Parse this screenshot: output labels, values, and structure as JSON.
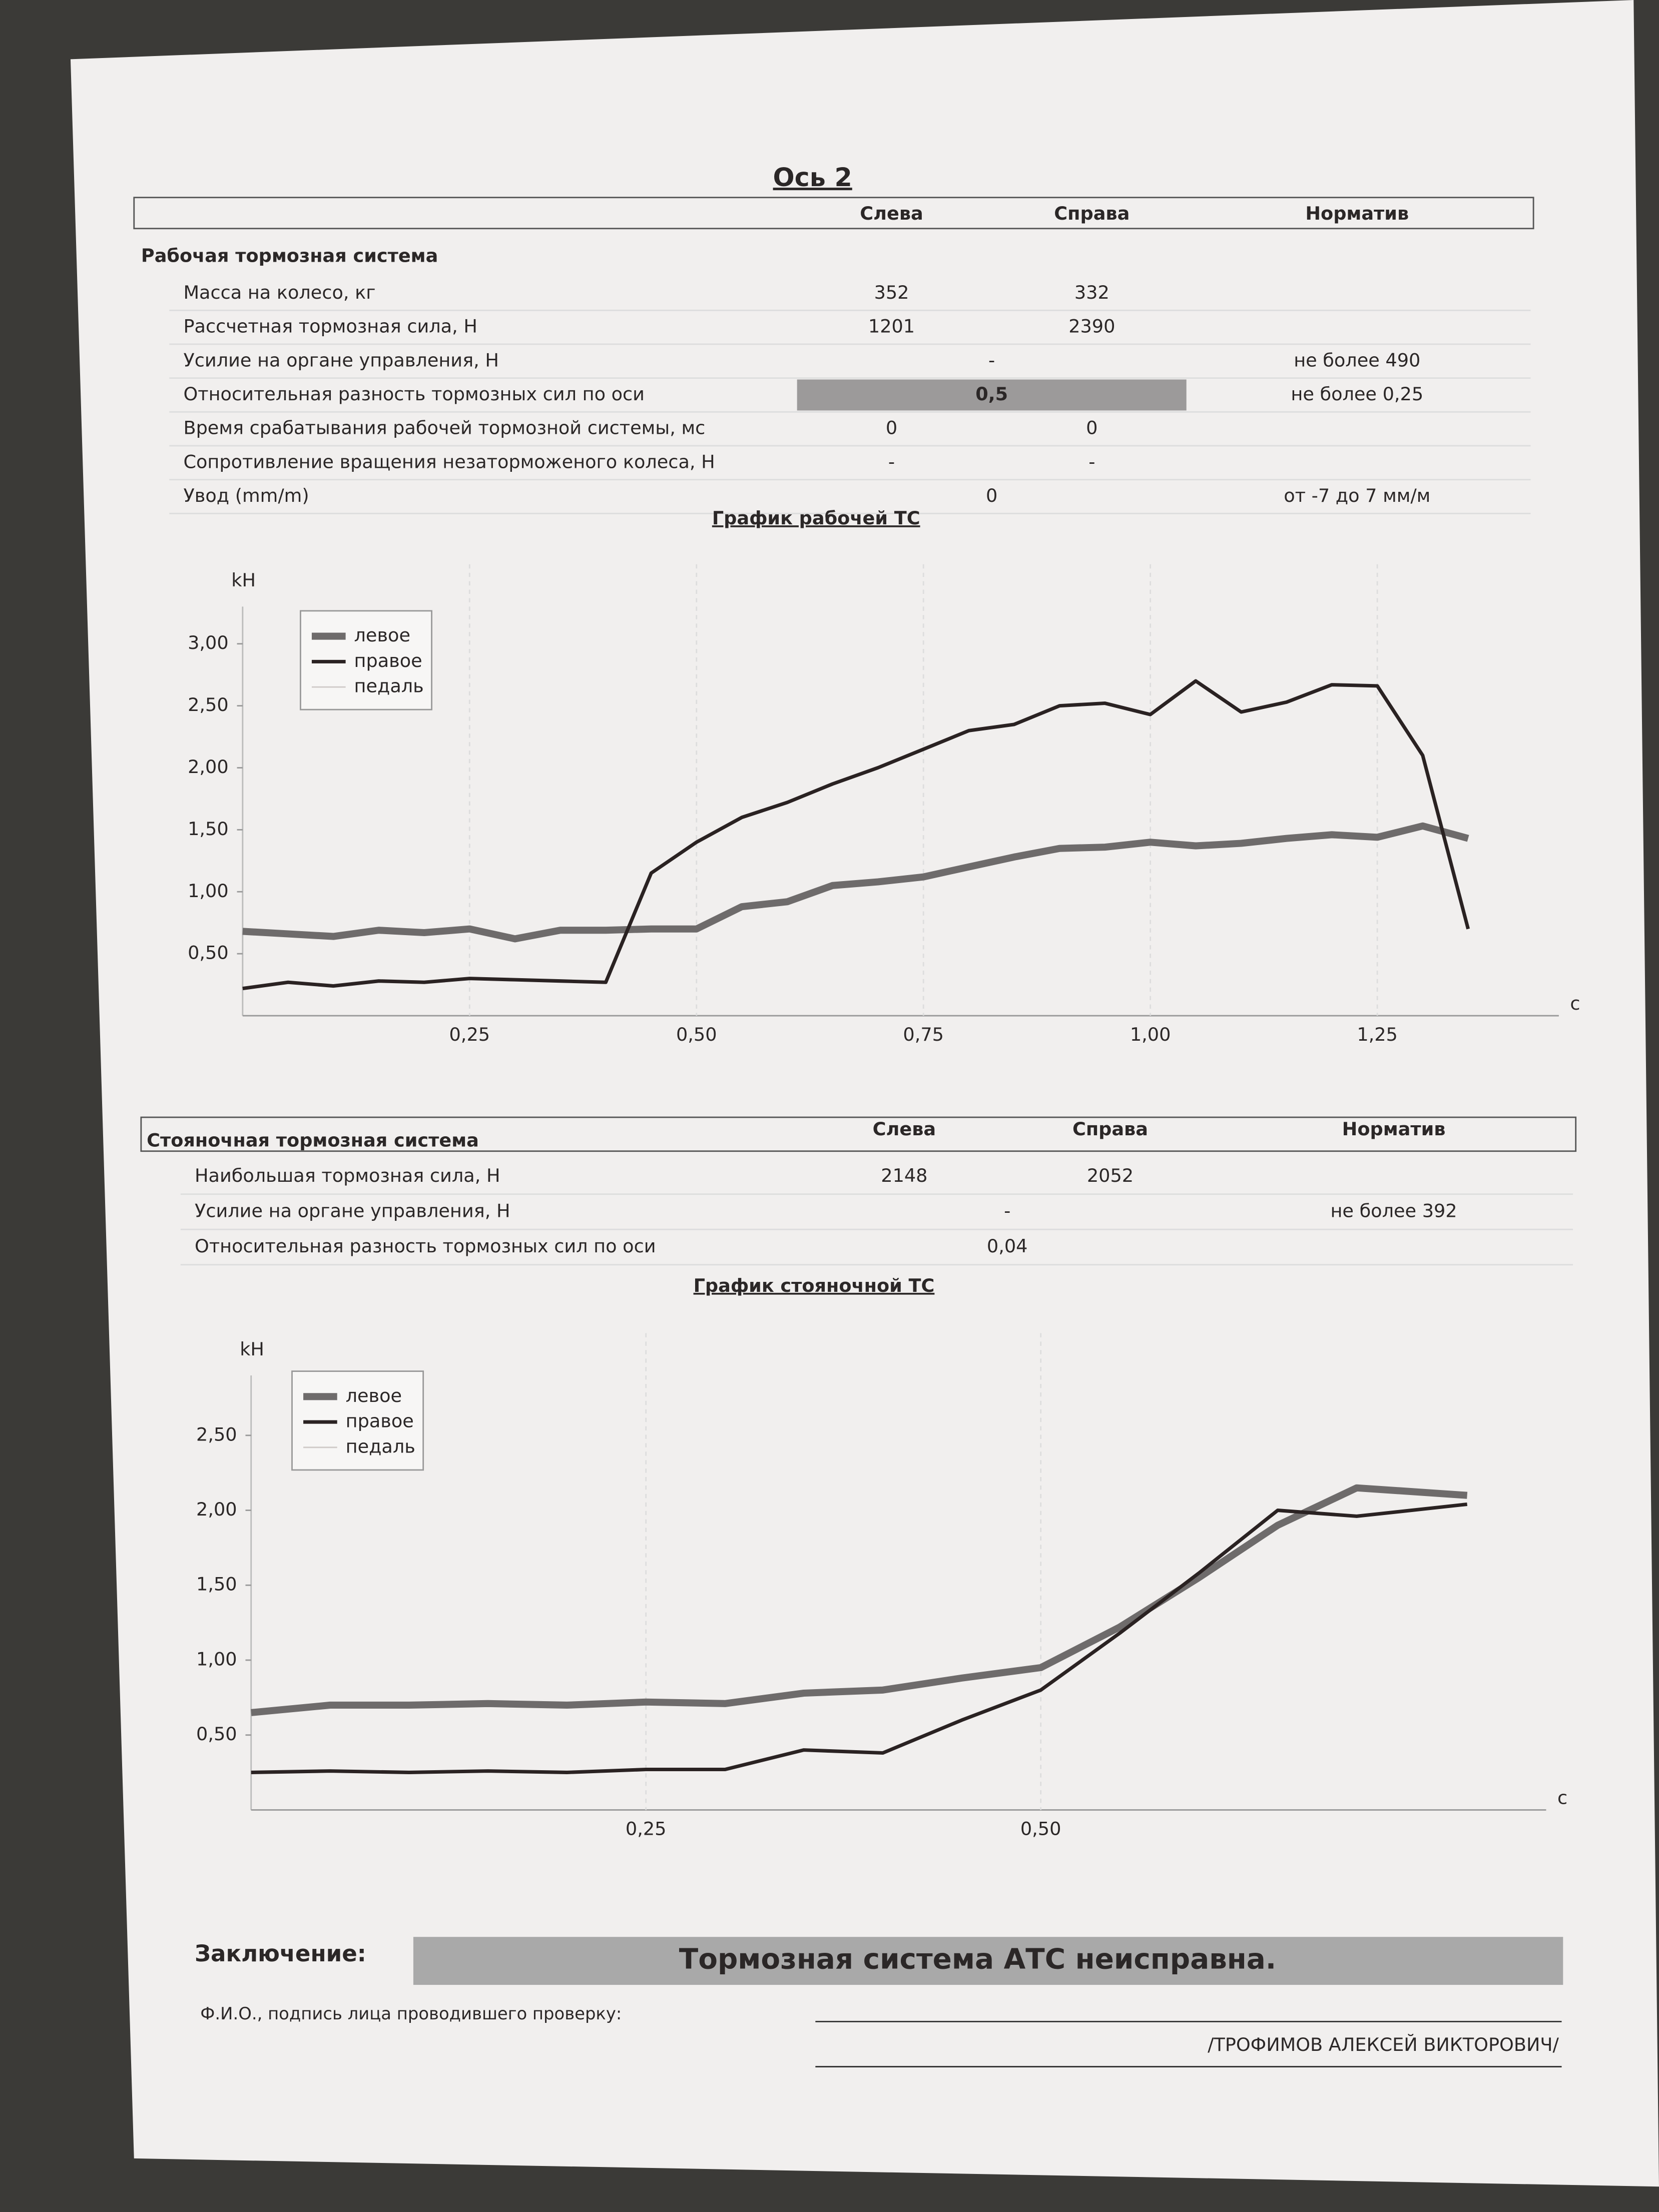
{
  "header": {
    "title": "Ось 2"
  },
  "service_table": {
    "section": "Рабочая тормозная система",
    "columns": [
      "Слева",
      "Справа",
      "Норматив"
    ],
    "rows": [
      {
        "label": "Масса на колесо, кг",
        "left": "352",
        "right": "332"
      },
      {
        "label": "Рассчетная тормозная сила, Н",
        "left": "1201",
        "right": "2390"
      },
      {
        "label": "Усилие на органе управления, Н",
        "merged": "-",
        "norm": "не более 490"
      },
      {
        "label": "Относительная разность тормозных сил по оси",
        "merged": "0,5",
        "norm": "не более 0,25",
        "highlighted": true
      },
      {
        "label": "Время срабатывания рабочей тормозной системы, мс",
        "left": "0",
        "right": "0"
      },
      {
        "label": "Сопротивление вращения незаторможеного колеса, Н",
        "left": "-",
        "right": "-"
      },
      {
        "label": "Увод (mm/m)",
        "merged": "0",
        "norm": "от -7 до 7 мм/м"
      }
    ]
  },
  "parking_table": {
    "section": "Стояночная тормозная система",
    "columns": [
      "Слева",
      "Справа",
      "Норматив"
    ],
    "rows": [
      {
        "label": "Наибольшая тормозная сила, Н",
        "left": "2148",
        "right": "2052"
      },
      {
        "label": "Усилие на органе управления, Н",
        "merged": "-",
        "norm": "не более 392"
      },
      {
        "label": "Относительная разность тормозных сил по оси",
        "merged": "0,04"
      }
    ]
  },
  "chart_data": [
    {
      "type": "line",
      "title": "График рабочей ТС",
      "y_label": "kH",
      "x_label": "с",
      "x": [
        0,
        0.05,
        0.1,
        0.15,
        0.2,
        0.25,
        0.3,
        0.35,
        0.4,
        0.45,
        0.5,
        0.55,
        0.6,
        0.65,
        0.7,
        0.75,
        0.8,
        0.85,
        0.9,
        0.95,
        1.0,
        1.05,
        1.1,
        1.15,
        1.2,
        1.25,
        1.3,
        1.35
      ],
      "series": [
        {
          "name": "левое",
          "color": "#6e6b6b",
          "width": 5,
          "values": [
            0.68,
            0.66,
            0.64,
            0.69,
            0.67,
            0.7,
            0.62,
            0.69,
            0.69,
            0.7,
            0.7,
            0.88,
            0.92,
            1.05,
            1.08,
            1.12,
            1.2,
            1.28,
            1.35,
            1.36,
            1.4,
            1.37,
            1.39,
            1.43,
            1.46,
            1.44,
            1.53,
            1.43
          ]
        },
        {
          "name": "правое",
          "color": "#2a2222",
          "width": 2.5,
          "values": [
            0.22,
            0.27,
            0.24,
            0.28,
            0.27,
            0.3,
            0.29,
            0.28,
            0.27,
            1.15,
            1.4,
            1.6,
            1.72,
            1.87,
            2.0,
            2.15,
            2.3,
            2.35,
            2.5,
            2.52,
            2.43,
            2.7,
            2.45,
            2.53,
            2.67,
            2.66,
            2.1,
            0.7
          ]
        },
        {
          "name": "педаль",
          "color": "#cfcac8",
          "width": 1,
          "values": [
            null,
            null,
            null,
            null,
            null,
            null,
            null,
            null,
            null,
            null,
            null,
            null,
            null,
            null,
            null,
            null,
            null,
            null,
            null,
            null,
            null,
            null,
            null,
            null,
            null,
            null,
            null,
            null
          ]
        }
      ],
      "xlim": [
        0,
        1.45
      ],
      "ylim": [
        0,
        3.3
      ],
      "xticks": [
        {
          "value": 0.25,
          "label": "0,25"
        },
        {
          "value": 0.5,
          "label": "0,50"
        },
        {
          "value": 0.75,
          "label": "0,75"
        },
        {
          "value": 1.0,
          "label": "1,00"
        },
        {
          "value": 1.25,
          "label": "1,25"
        }
      ],
      "yticks": [
        {
          "value": 0.5,
          "label": "0,50"
        },
        {
          "value": 1.0,
          "label": "1,00"
        },
        {
          "value": 1.5,
          "label": "1,50"
        },
        {
          "value": 2.0,
          "label": "2,00"
        },
        {
          "value": 2.5,
          "label": "2,50"
        },
        {
          "value": 3.0,
          "label": "3,00"
        }
      ],
      "grid": true,
      "legend": "upper left"
    },
    {
      "type": "line",
      "title": "График стояночной ТС",
      "y_label": "kH",
      "x_label": "с",
      "x": [
        0,
        0.05,
        0.1,
        0.15,
        0.2,
        0.25,
        0.3,
        0.35,
        0.4,
        0.45,
        0.5,
        0.55,
        0.6,
        0.65,
        0.7,
        0.77
      ],
      "series": [
        {
          "name": "левое",
          "color": "#6e6b6b",
          "width": 5,
          "values": [
            0.65,
            0.7,
            0.7,
            0.71,
            0.7,
            0.72,
            0.71,
            0.78,
            0.8,
            0.88,
            0.95,
            1.22,
            1.55,
            1.9,
            2.15,
            2.1
          ]
        },
        {
          "name": "правое",
          "color": "#2a2222",
          "width": 2.5,
          "values": [
            0.25,
            0.26,
            0.25,
            0.26,
            0.25,
            0.27,
            0.27,
            0.4,
            0.38,
            0.6,
            0.8,
            1.18,
            1.58,
            2.0,
            1.96,
            2.04
          ]
        },
        {
          "name": "педаль",
          "color": "#cfcac8",
          "width": 1,
          "values": [
            null,
            null,
            null,
            null,
            null,
            null,
            null,
            null,
            null,
            null,
            null,
            null,
            null,
            null,
            null,
            null
          ]
        }
      ],
      "xlim": [
        0,
        0.82
      ],
      "ylim": [
        0,
        2.9
      ],
      "xticks": [
        {
          "value": 0.25,
          "label": "0,25"
        },
        {
          "value": 0.5,
          "label": "0,50"
        }
      ],
      "yticks": [
        {
          "value": 0.5,
          "label": "0,50"
        },
        {
          "value": 1.0,
          "label": "1,00"
        },
        {
          "value": 1.5,
          "label": "1,50"
        },
        {
          "value": 2.0,
          "label": "2,00"
        },
        {
          "value": 2.5,
          "label": "2,50"
        }
      ],
      "grid": true,
      "legend": "upper left"
    }
  ],
  "conclusion": {
    "label": "Заключение:",
    "verdict": "Тормозная система АТС неисправна.",
    "signature_label": "Ф.И.О., подпись лица проводившего проверку:",
    "signature_name": "/ТРОФИМОВ АЛЕКСЕЙ ВИКТОРОВИЧ/"
  }
}
